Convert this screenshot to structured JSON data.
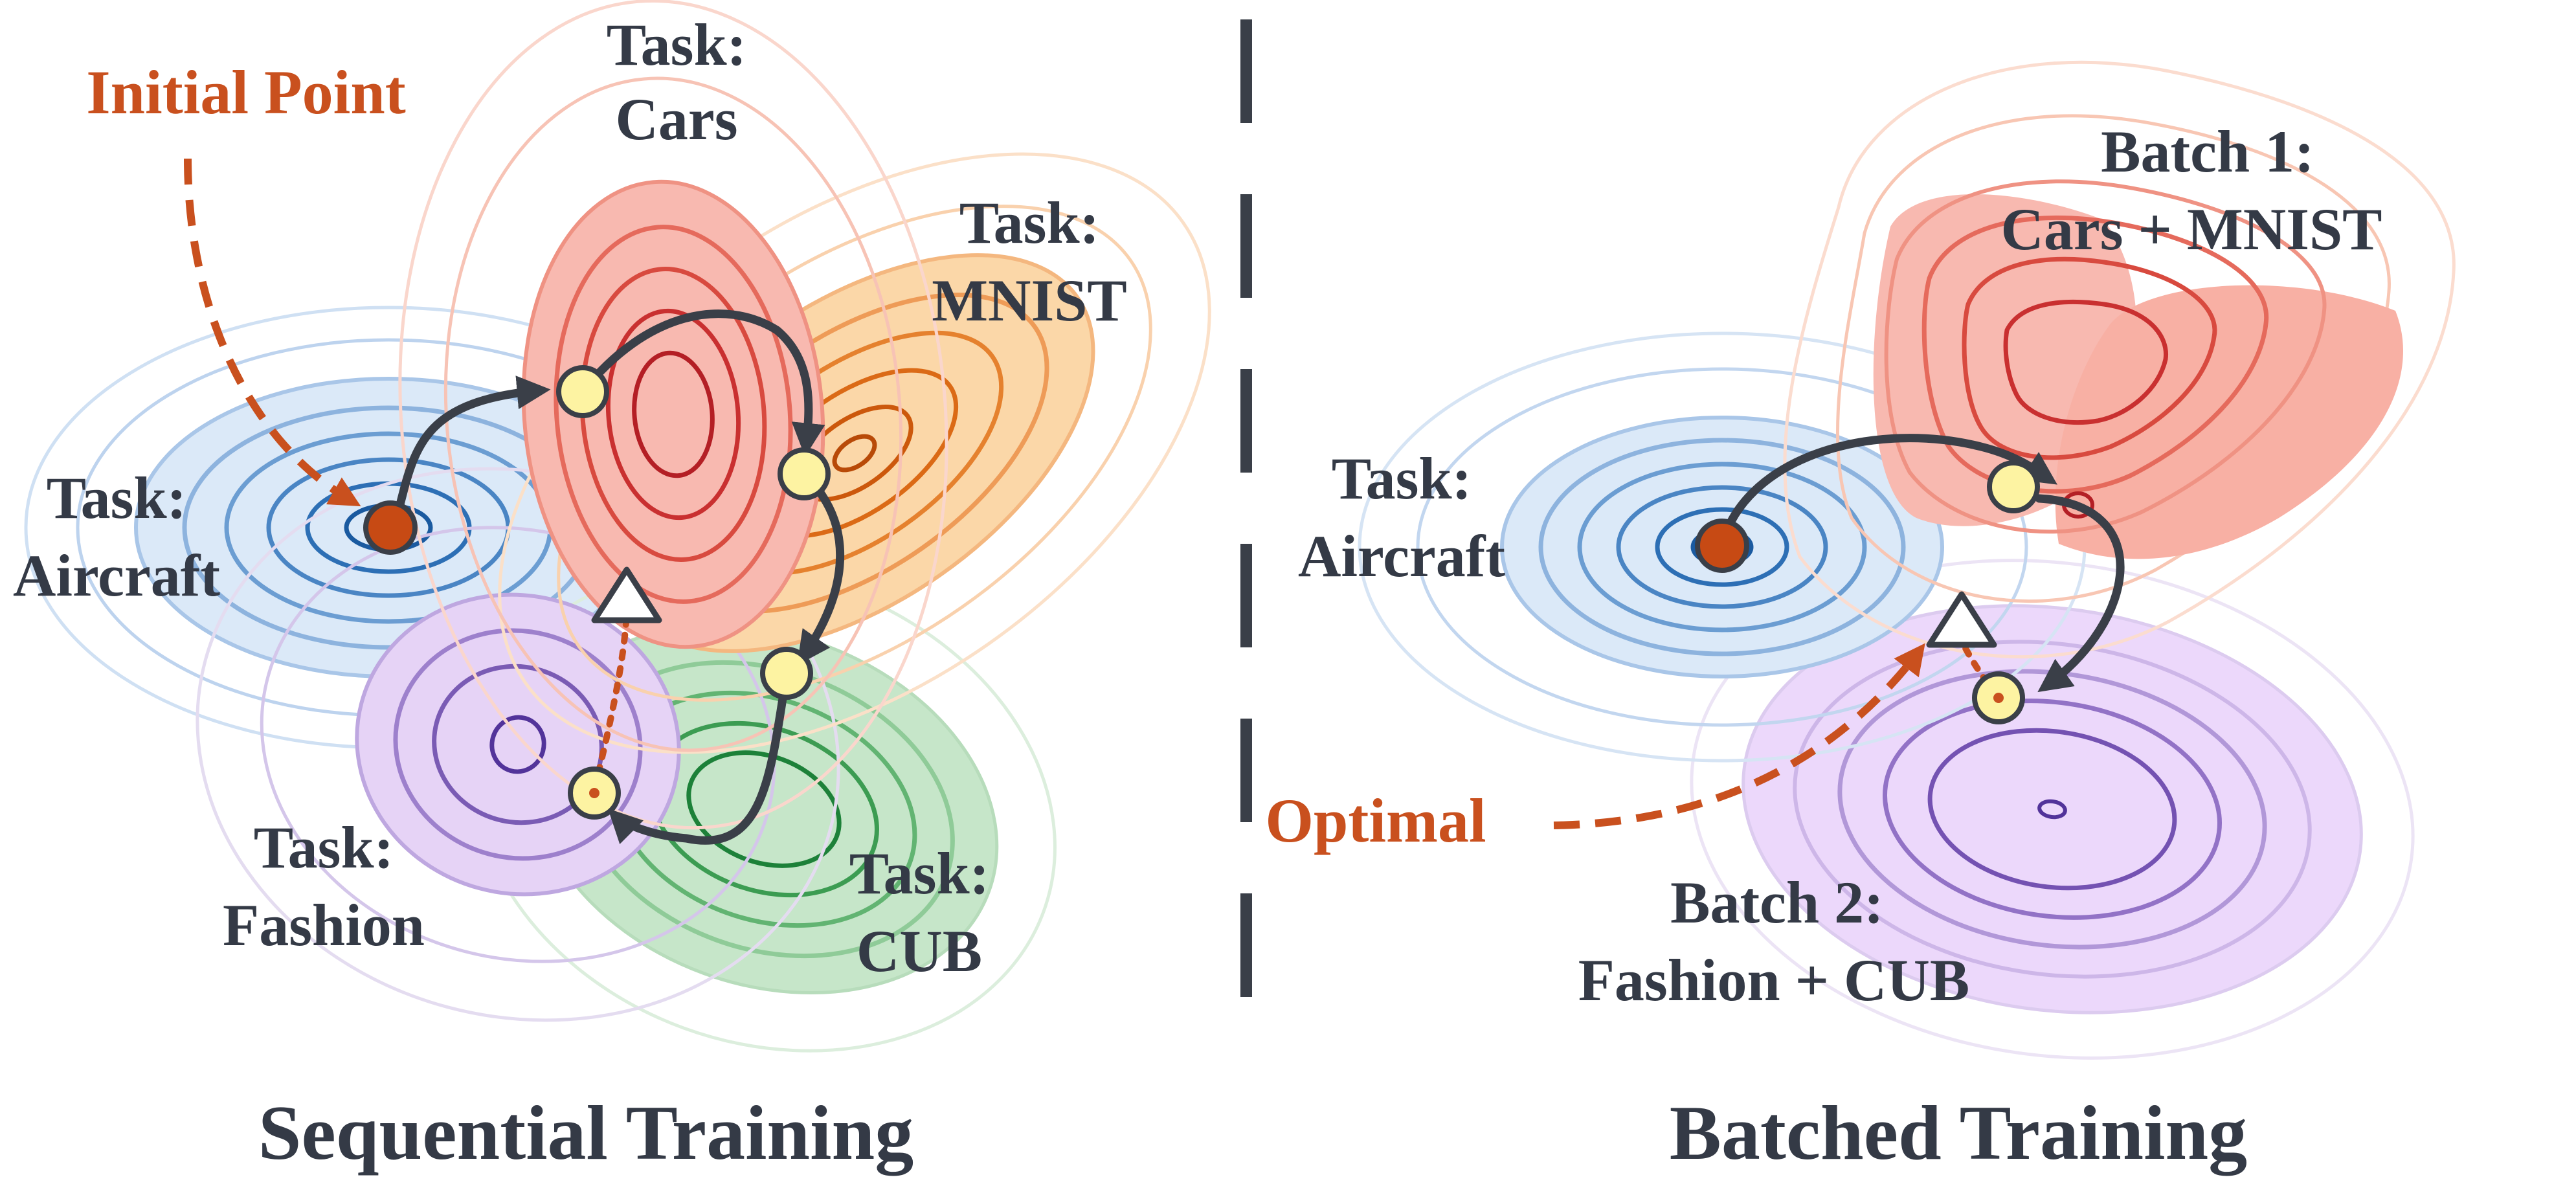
{
  "colors": {
    "text": "#343a46",
    "accent": "#c9501e",
    "arrow": "#3a3f48",
    "waypoint": "#fdf3a2",
    "aircraft": "#1f6fb2",
    "cars": "#c0282a",
    "mnist": "#e26a1a",
    "fashion": "#5b3c98",
    "cub": "#1a8a3a"
  },
  "left": {
    "annotation": "Initial Point",
    "tasks": {
      "cars": {
        "prefix": "Task:",
        "name": "Cars"
      },
      "mnist": {
        "prefix": "Task:",
        "name": "MNIST"
      },
      "aircraft": {
        "prefix": "Task:",
        "name": "Aircraft"
      },
      "fashion": {
        "prefix": "Task:",
        "name": "Fashion"
      },
      "cub": {
        "prefix": "Task:",
        "name": "CUB"
      }
    },
    "caption": "Sequential Training"
  },
  "right": {
    "annotation": "Optimal",
    "aircraft": {
      "prefix": "Task:",
      "name": "Aircraft"
    },
    "batch1": {
      "prefix": "Batch 1:",
      "name": "Cars + MNIST"
    },
    "batch2": {
      "prefix": "Batch 2:",
      "name": "Fashion + CUB"
    },
    "caption": "Batched Training"
  },
  "icons": [
    "initial-point-marker",
    "waypoint-marker",
    "optimum-triangle-icon"
  ]
}
